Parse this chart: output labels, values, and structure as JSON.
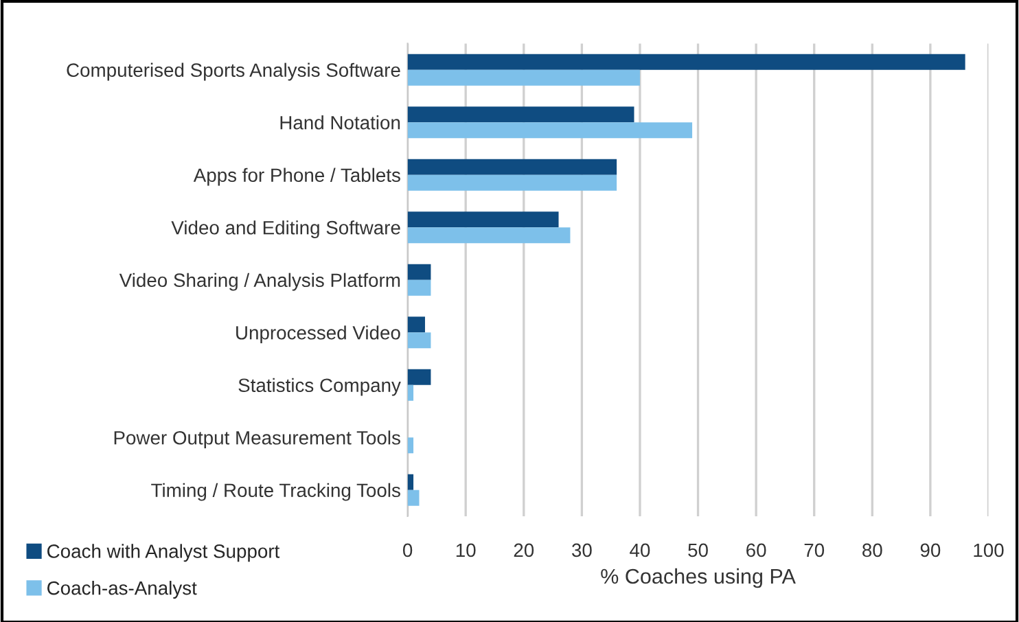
{
  "chart_data": {
    "type": "bar",
    "orientation": "horizontal",
    "xlabel": "% Coaches using PA",
    "categories": [
      "Computerised Sports Analysis Software",
      "Hand Notation",
      "Apps for Phone / Tablets",
      "Video and Editing Software",
      "Video Sharing / Analysis Platform",
      "Unprocessed Video",
      "Statistics Company",
      "Power Output Measurement Tools",
      "Timing / Route Tracking Tools"
    ],
    "series": [
      {
        "name": "Coach with Analyst Support",
        "color": "#0f4c81",
        "values": [
          96,
          39,
          36,
          26,
          4,
          3,
          4,
          0,
          1
        ]
      },
      {
        "name": "Coach-as-Analyst",
        "color": "#7dc0ea",
        "values": [
          40,
          49,
          36,
          28,
          4,
          4,
          1,
          1,
          2
        ]
      }
    ],
    "xlim": [
      0,
      100
    ],
    "xticks": [
      0,
      10,
      20,
      30,
      40,
      50,
      60,
      70,
      80,
      90,
      100
    ],
    "grid": "x",
    "legend": "bottom left"
  }
}
